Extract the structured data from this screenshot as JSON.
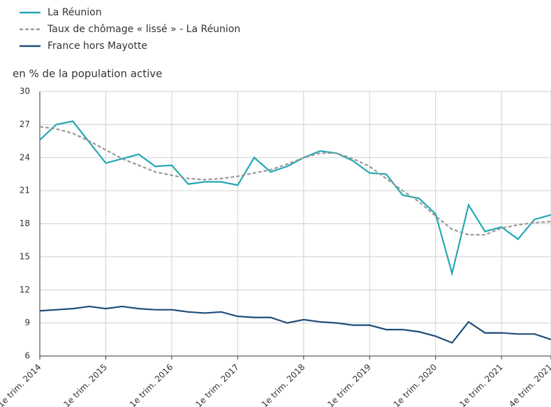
{
  "chart_data": {
    "type": "line",
    "y_label": "en % de la population active",
    "categories": [
      "1e trim. 2014",
      null,
      null,
      null,
      "1e trim. 2015",
      null,
      null,
      null,
      "1e trim. 2016",
      null,
      null,
      null,
      "1e trim. 2017",
      null,
      null,
      null,
      "1e trim. 2018",
      null,
      null,
      null,
      "1e trim. 2019",
      null,
      null,
      null,
      "1e trim. 2020",
      null,
      null,
      null,
      "1e trim. 2021",
      null,
      null,
      "4e trim. 2021"
    ],
    "series": [
      {
        "name": "La Réunion",
        "color": "#22a8b4",
        "dash": false,
        "values": [
          25.6,
          27.0,
          27.3,
          25.4,
          23.5,
          23.9,
          24.3,
          23.2,
          23.3,
          21.6,
          21.8,
          21.8,
          21.5,
          24.0,
          22.7,
          23.2,
          24.0,
          24.6,
          24.4,
          23.7,
          22.6,
          22.5,
          20.6,
          20.3,
          18.9,
          13.5,
          19.7,
          17.3,
          17.7,
          16.6,
          18.4,
          18.8
        ]
      },
      {
        "name": "Taux de chômage « lissé » - La Réunion",
        "color": "#999999",
        "dash": true,
        "values": [
          26.8,
          26.6,
          26.2,
          25.5,
          24.7,
          23.9,
          23.3,
          22.7,
          22.4,
          22.1,
          22.0,
          22.1,
          22.3,
          22.6,
          22.9,
          23.4,
          24.0,
          24.4,
          24.4,
          23.9,
          23.2,
          22.1,
          21.0,
          20.0,
          18.7,
          17.5,
          17.0,
          17.0,
          17.6,
          17.9,
          18.1,
          18.2
        ]
      },
      {
        "name": "France hors Mayotte",
        "color": "#1f4e79",
        "dash": false,
        "values": [
          10.1,
          10.2,
          10.3,
          10.5,
          10.3,
          10.5,
          10.3,
          10.2,
          10.2,
          10.0,
          9.9,
          10.0,
          9.6,
          9.5,
          9.5,
          9.0,
          9.3,
          9.1,
          9.0,
          8.8,
          8.8,
          8.4,
          8.4,
          8.2,
          7.8,
          7.2,
          9.1,
          8.1,
          8.1,
          8.0,
          8.0,
          7.5
        ]
      }
    ],
    "ylim": [
      6,
      30
    ],
    "yticks": [
      6,
      9,
      12,
      15,
      18,
      21,
      24,
      27,
      30
    ],
    "grid": true,
    "legend": "top-left"
  }
}
